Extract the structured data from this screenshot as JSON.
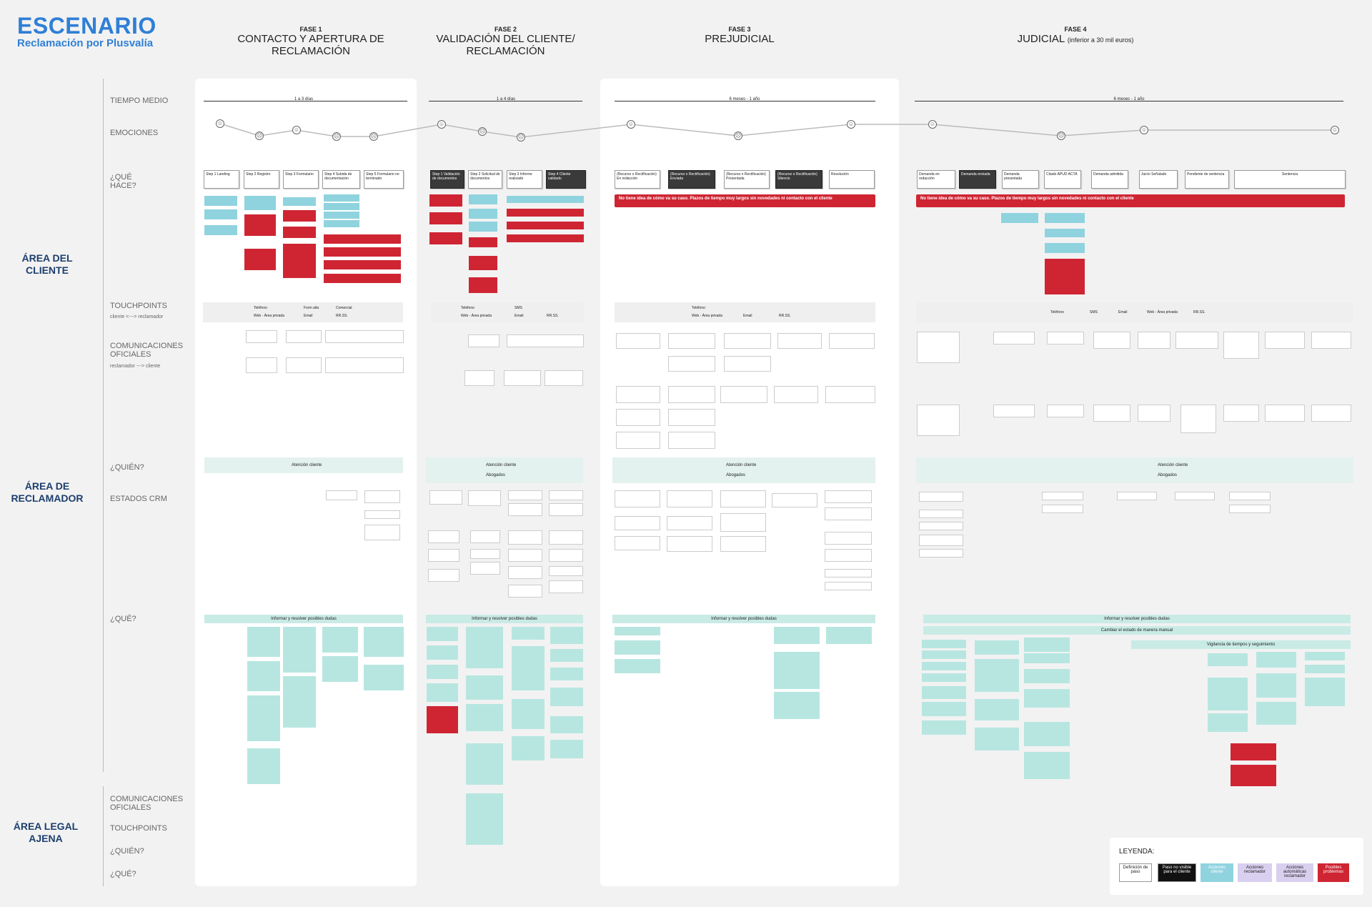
{
  "header": {
    "title": "ESCENARIO",
    "subtitle": "Reclamación por Plusvalía"
  },
  "phases": [
    {
      "num": "FASE 1",
      "name": "CONTACTO Y APERTURA DE RECLAMACIÓN",
      "note": ""
    },
    {
      "num": "FASE 2",
      "name": "VALIDACIÓN DEL CLIENTE/ RECLAMACIÓN",
      "note": ""
    },
    {
      "num": "FASE 3",
      "name": "PREJUDICIAL",
      "note": ""
    },
    {
      "num": "FASE 4",
      "name": "JUDICIAL",
      "note": "(inferior a 30 mil euros)"
    }
  ],
  "areas": {
    "cliente": "ÁREA DEL CLIENTE",
    "reclamador": "ÁREA DE RECLAMADOR",
    "legal": "ÁREA LEGAL AJENA"
  },
  "rows": {
    "tiempo": "TIEMPO MEDIO",
    "emociones": "EMOCIONES",
    "que_hace": "¿QUÉ HACE?",
    "touchpoints": "TOUCHPOINTS",
    "touch_sub": "cliente <---> reclamador",
    "comunicaciones": "COMUNICACIONES OFICIALES",
    "com_sub": "reclamador ---> cliente",
    "quien": "¿QUIÉN?",
    "estados": "ESTADOS CRM",
    "que": "¿QUÉ?",
    "legal_com": "COMUNICACIONES OFICIALES",
    "legal_touch": "TOUCHPOINTS",
    "legal_quien": "¿QUIÉN?",
    "legal_que": "¿QUÉ?"
  },
  "durations": [
    "1 a 3 días",
    "1 a 4 días",
    "6 meses - 1 año",
    "6 meses - 1 año"
  ],
  "steps": {
    "f1": [
      "Step 1 Landing",
      "Step 2 Registro",
      "Step 3 Formulario",
      "Step 4 Subida de documentación",
      "Step 5 Formulario no terminado"
    ],
    "f2": [
      "Step 1 Validación de documentos",
      "Step 2 Solicitud de documentos",
      "Step 3 Informe realizado",
      "Step 4 Cliente validado"
    ],
    "f3": [
      "(Recurso o Rectificación) En redacción",
      "(Recurso o Rectificación) Enviada",
      "(Recurso o Rectificación) Presentada",
      "(Recurso o Rectificación) Silencio",
      "Resolución"
    ],
    "f4": [
      "Demanda en redacción",
      "Demanda enviada",
      "Demanda presentada",
      "Citado APUD ACTA",
      "Demanda admitida",
      "Juicio Señalado",
      "Pendiente de sentencia",
      "Sentencia"
    ]
  },
  "banners": {
    "f3": "No tiene idea de cómo va su caso. Plazos de tiempo muy largos sin novedades ni contacto con el cliente",
    "f4": "No tiene idea de cómo va su caso. Plazos de tiempo muy largos sin novedades ni contacto con el cliente"
  },
  "touchpoints": {
    "f1": [
      "Teléfono",
      "Form alta",
      "Comercial",
      "Web - Área privada",
      "Email",
      "RR.SS."
    ],
    "f2": [
      "Teléfono",
      "SMS",
      "Web - Área privada",
      "Email",
      "RR.SS."
    ],
    "f3": [
      "Teléfono",
      "Web - Área privada",
      "Email",
      "RR.SS."
    ],
    "f4": [
      "Teléfono",
      "SMS",
      "Email",
      "Web - Área privada",
      "RR.SS."
    ]
  },
  "quien": {
    "f1": [
      "Atención cliente"
    ],
    "f2": [
      "Atención cliente",
      "Abogados"
    ],
    "f3": [
      "Atención cliente",
      "Abogados"
    ],
    "f4": [
      "Atención cliente",
      "Abogados"
    ]
  },
  "que_bars": {
    "f1": "Informar y resolver posibles dudas",
    "f2": "Informar y resolver posibles dudas",
    "f3": "Informar y resolver posibles dudas",
    "f4a": "Informar y resolver posibles dudas",
    "f4b": "Cambiar el estado de manera manual",
    "f4c": "Vigilancia de tiempos y seguimiento"
  },
  "legend": {
    "title": "LEYENDA:",
    "items": [
      "Definición de paso",
      "Paso no visible para el cliente",
      "Acciones cliente",
      "Acciones reclamador",
      "Acciones automáticas reclamador",
      "Posibles problemas"
    ]
  },
  "colors": {
    "accent": "#2f7fd6",
    "red": "#cf2533",
    "cyan": "#8fd3df",
    "mint": "#b7e6e0",
    "purple": "#d9d0f0"
  }
}
